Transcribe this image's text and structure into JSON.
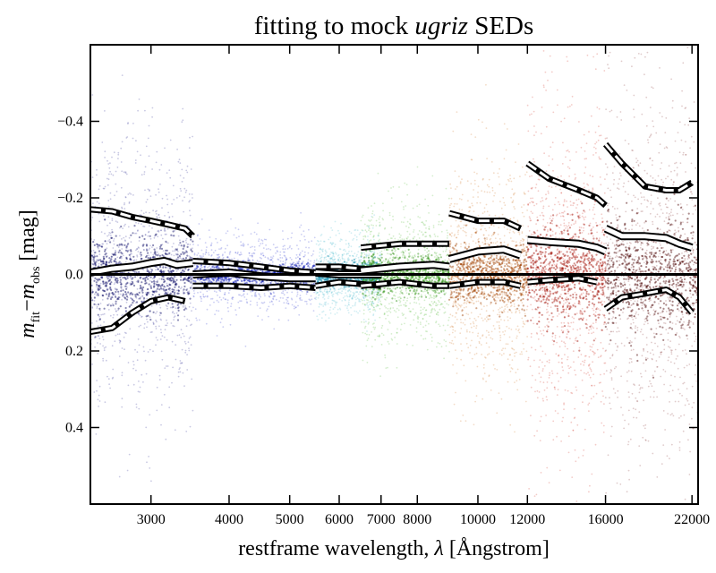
{
  "chart_data": {
    "type": "scatter",
    "title_main": "fitting to mock ",
    "title_italic": "ugriz",
    "title_end": " SEDs",
    "xlabel_main": "restframe wavelength, ",
    "xlabel_symbol": "λ",
    "xlabel_end": " [Ångstrom]",
    "ylabel_m1": "m",
    "ylabel_sub1": "fit",
    "ylabel_minus": "−",
    "ylabel_m2": "m",
    "ylabel_sub2": "obs",
    "ylabel_unit": " [mag]",
    "x_scale": "log",
    "xlim": [
      2400,
      22500
    ],
    "ylim": [
      0.6,
      -0.6
    ],
    "x_ticks": [
      {
        "value": 3000,
        "label": "3000"
      },
      {
        "value": 4000,
        "label": "4000"
      },
      {
        "value": 5000,
        "label": "5000"
      },
      {
        "value": 6000,
        "label": "6000"
      },
      {
        "value": 7000,
        "label": "7000"
      },
      {
        "value": 8000,
        "label": "8000"
      },
      {
        "value": 10000,
        "label": "10000"
      },
      {
        "value": 12000,
        "label": "12000"
      },
      {
        "value": 16000,
        "label": "16000"
      },
      {
        "value": 22000,
        "label": "22000"
      }
    ],
    "y_ticks": [
      {
        "value": -0.4,
        "label": "−0.4"
      },
      {
        "value": -0.2,
        "label": "−0.2"
      },
      {
        "value": 0.0,
        "label": "0.0"
      },
      {
        "value": 0.2,
        "label": "0.2"
      },
      {
        "value": 0.4,
        "label": "0.4"
      }
    ],
    "reference_line": 0.0,
    "bands": [
      {
        "name": "u",
        "x_range": [
          2400,
          3500
        ],
        "color": "#0a0a80",
        "spread": 0.17,
        "core_color": "#000060",
        "median": {
          "x": [
            2400,
            2600,
            2800,
            3000,
            3150,
            3300,
            3500
          ],
          "y": [
            -0.005,
            -0.015,
            -0.02,
            -0.03,
            -0.035,
            -0.025,
            -0.03
          ]
        },
        "upper": {
          "x": [
            2400,
            2600,
            2800,
            3000,
            3200,
            3400,
            3500
          ],
          "y": [
            -0.17,
            -0.165,
            -0.15,
            -0.14,
            -0.13,
            -0.12,
            -0.1
          ]
        },
        "lower": {
          "x": [
            2400,
            2600,
            2800,
            3000,
            3200,
            3400
          ],
          "y": [
            0.15,
            0.14,
            0.1,
            0.07,
            0.06,
            0.07
          ]
        }
      },
      {
        "name": "g",
        "x_range": [
          3500,
          5500
        ],
        "color": "#1020c8",
        "spread": 0.05,
        "core_color": "#0010b0",
        "median": {
          "x": [
            3500,
            4000,
            4500,
            5000,
            5500
          ],
          "y": [
            0.0,
            -0.005,
            0.005,
            0.01,
            0.01
          ]
        },
        "upper": {
          "x": [
            3500,
            4000,
            4500,
            5000,
            5500
          ],
          "y": [
            -0.035,
            -0.03,
            -0.02,
            -0.01,
            -0.005
          ]
        },
        "lower": {
          "x": [
            3500,
            4000,
            4500,
            5000,
            5500
          ],
          "y": [
            0.03,
            0.03,
            0.035,
            0.03,
            0.035
          ]
        }
      },
      {
        "name": "r",
        "x_range": [
          5500,
          7000
        ],
        "color": "#30b0c8",
        "spread": 0.05,
        "core_color": "#1890b0",
        "median": {
          "x": [
            5500,
            6000,
            6500,
            7000
          ],
          "y": [
            -0.005,
            0.0,
            0.0,
            0.0
          ]
        },
        "upper": {
          "x": [
            5500,
            6000,
            6500,
            7000
          ],
          "y": [
            -0.02,
            -0.02,
            -0.015,
            -0.01
          ]
        },
        "lower": {
          "x": [
            5500,
            6000,
            6500,
            7000
          ],
          "y": [
            0.03,
            0.02,
            0.025,
            0.03
          ]
        }
      },
      {
        "name": "i",
        "x_range": [
          6500,
          9000
        ],
        "color": "#40b020",
        "spread": 0.09,
        "core_color": "#2c9010",
        "median": {
          "x": [
            6500,
            7500,
            8500,
            9000
          ],
          "y": [
            -0.01,
            -0.02,
            -0.025,
            -0.02
          ]
        },
        "upper": {
          "x": [
            6500,
            7500,
            8500,
            9000
          ],
          "y": [
            -0.07,
            -0.08,
            -0.08,
            -0.08
          ]
        },
        "lower": {
          "x": [
            6500,
            7500,
            8500,
            9000
          ],
          "y": [
            0.03,
            0.02,
            0.03,
            0.03
          ]
        }
      },
      {
        "name": "z",
        "x_range": [
          9000,
          12000
        ],
        "color": "#c86000",
        "spread": 0.14,
        "core_color": "#a04000",
        "median": {
          "x": [
            9000,
            10000,
            11000,
            11700
          ],
          "y": [
            -0.04,
            -0.06,
            -0.065,
            -0.05
          ]
        },
        "upper": {
          "x": [
            9000,
            10000,
            11000,
            11700
          ],
          "y": [
            -0.16,
            -0.14,
            -0.14,
            -0.12
          ]
        },
        "lower": {
          "x": [
            9000,
            10000,
            11000,
            11700
          ],
          "y": [
            0.03,
            0.02,
            0.02,
            0.03
          ]
        }
      },
      {
        "name": "u_red",
        "x_range": [
          12000,
          16000
        ],
        "color": "#c81400",
        "spread": 0.22,
        "core_color": "#a00c00",
        "median": {
          "x": [
            12000,
            13000,
            14500,
            15500,
            16000
          ],
          "y": [
            -0.09,
            -0.085,
            -0.08,
            -0.07,
            -0.06
          ]
        },
        "upper": {
          "x": [
            12000,
            13000,
            14500,
            15500,
            16000
          ],
          "y": [
            -0.29,
            -0.25,
            -0.22,
            -0.2,
            -0.18
          ]
        },
        "lower": {
          "x": [
            12000,
            13000,
            14500,
            15500
          ],
          "y": [
            0.02,
            0.015,
            0.01,
            0.02
          ]
        }
      },
      {
        "name": "g_red",
        "x_range": [
          16000,
          22500
        ],
        "color": "#701010",
        "spread": 0.25,
        "core_color": "#4a0000",
        "median": {
          "x": [
            16000,
            17000,
            18500,
            20000,
            21000,
            22000
          ],
          "y": [
            -0.12,
            -0.1,
            -0.1,
            -0.095,
            -0.08,
            -0.07
          ]
        },
        "upper": {
          "x": [
            16000,
            17000,
            18500,
            20000,
            21000,
            22000
          ],
          "y": [
            -0.34,
            -0.29,
            -0.23,
            -0.22,
            -0.22,
            -0.24
          ]
        },
        "lower": {
          "x": [
            16000,
            17000,
            18500,
            20000,
            21000,
            22000
          ],
          "y": [
            0.09,
            0.06,
            0.05,
            0.04,
            0.06,
            0.1
          ]
        }
      }
    ]
  }
}
